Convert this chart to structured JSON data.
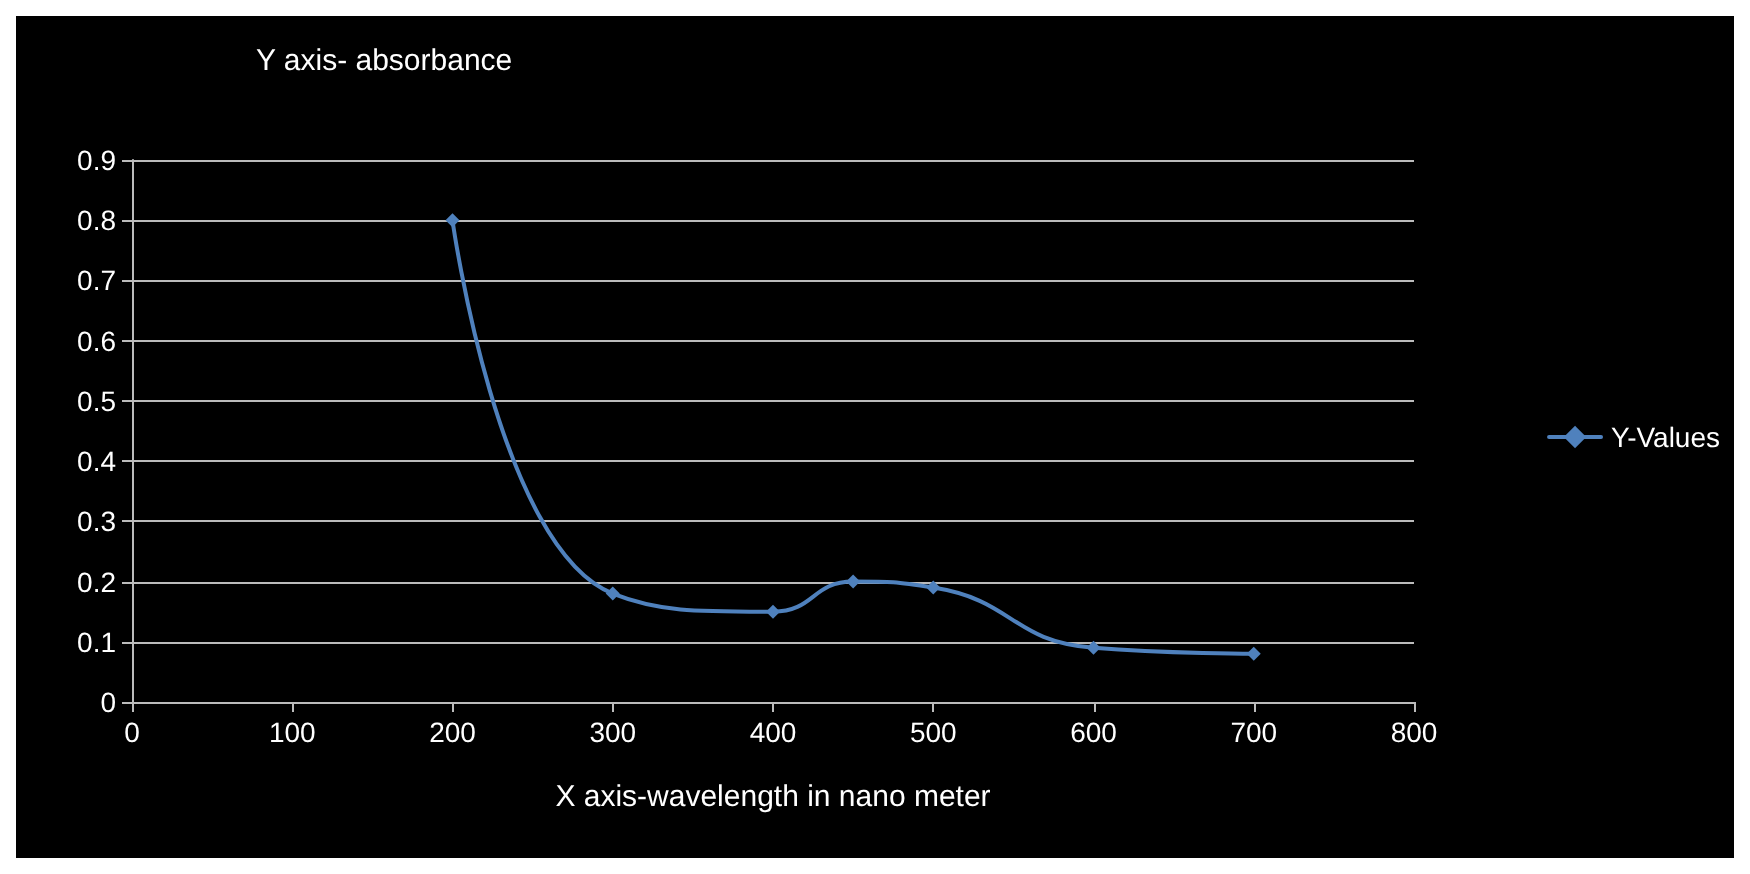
{
  "chart_data": {
    "type": "line",
    "title": "Y axis- absorbance",
    "xlabel": "X axis-wavelength in nano meter",
    "x": [
      200,
      300,
      400,
      450,
      500,
      600,
      700
    ],
    "series": [
      {
        "name": "Y-Values",
        "color": "#4f81bd",
        "values": [
          0.8,
          0.18,
          0.15,
          0.2,
          0.19,
          0.09,
          0.08
        ]
      }
    ],
    "xlim": [
      0,
      800
    ],
    "xticks": [
      0,
      100,
      200,
      300,
      400,
      500,
      600,
      700,
      800
    ],
    "ylim": [
      0,
      0.9
    ],
    "yticks": [
      0,
      0.1,
      0.2,
      0.3,
      0.4,
      0.5,
      0.6,
      0.7,
      0.8,
      0.9
    ],
    "grid": "y",
    "legend": "right",
    "marker": "diamond",
    "line_style": "solid"
  }
}
